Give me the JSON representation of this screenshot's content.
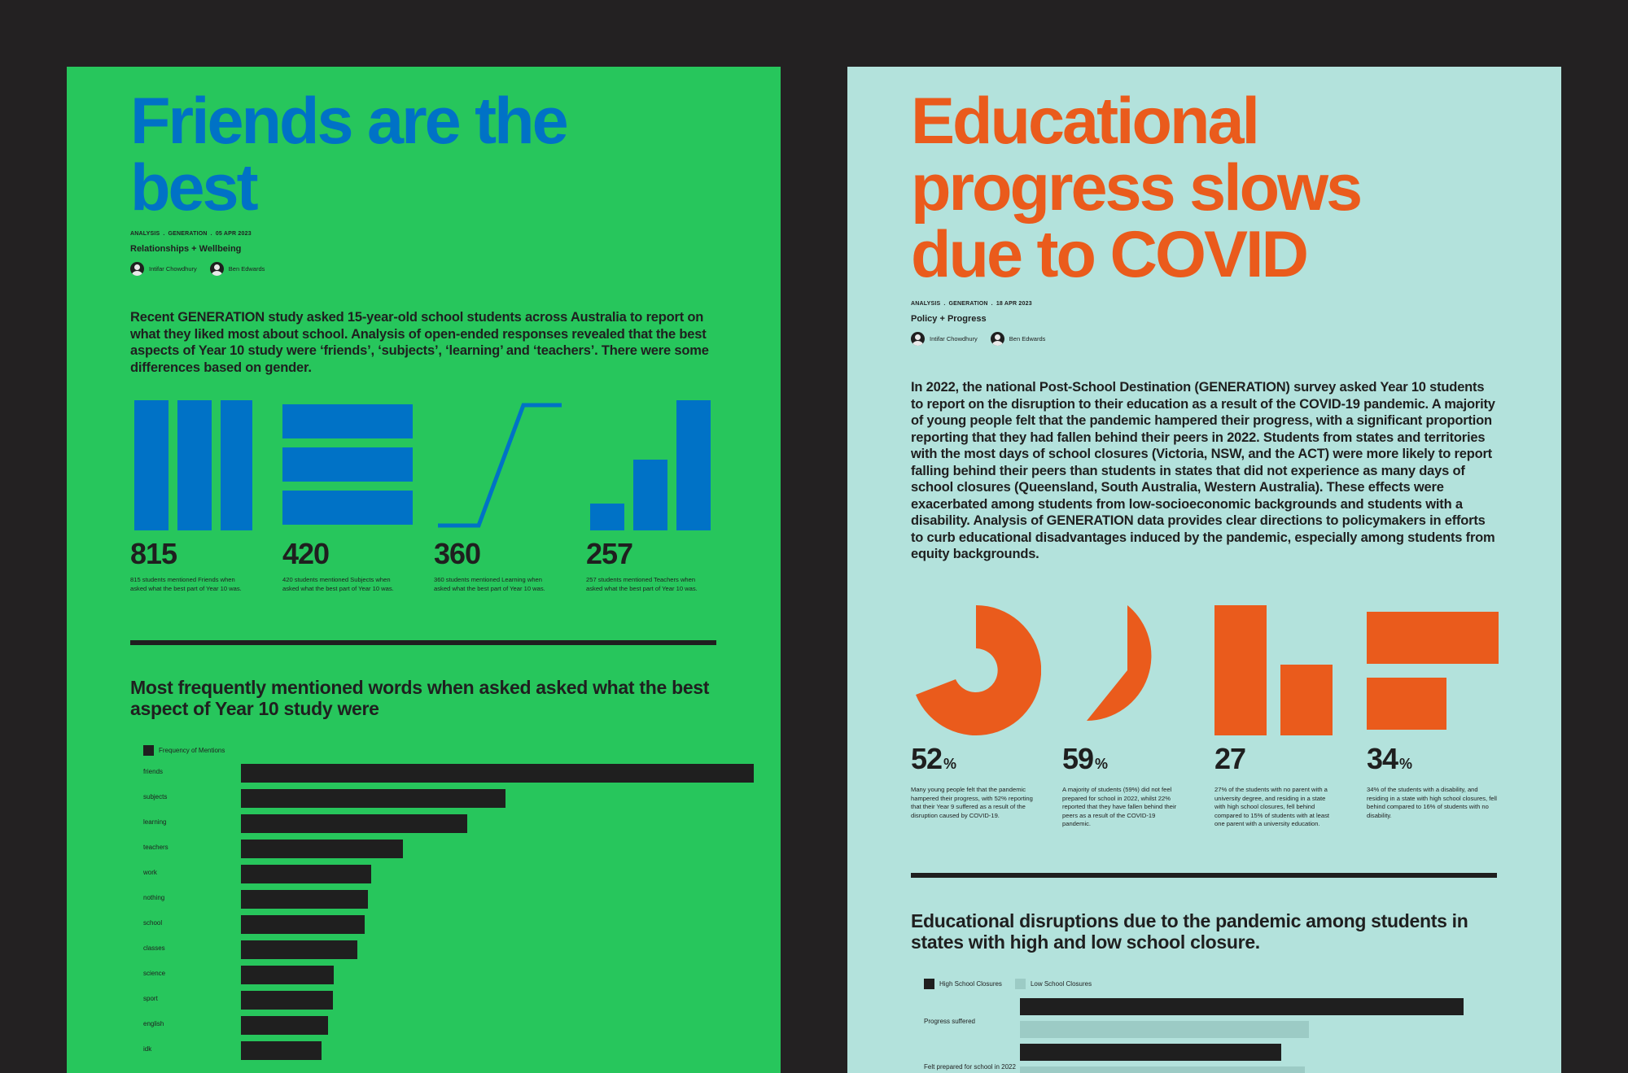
{
  "left_page": {
    "title_lines": [
      "Friends are the",
      "best"
    ],
    "meta": [
      "ANALYSIS",
      "GENERATION",
      "05 APR 2023"
    ],
    "category": "Relationships + Wellbeing",
    "authors": [
      "Intifar Chowdhury",
      "Ben Edwards"
    ],
    "intro": "Recent GENERATION study asked 15-year-old school students across Australia to report on what they liked most about school. Analysis of open-ended responses revealed that the best aspects of Year 10 study were ‘friends’, ‘subjects’, ‘learning’ and ‘teachers’. There were some differences based on gender.",
    "stats": [
      {
        "value": "815",
        "desc": "815 students mentioned Friends when asked what the best part of Year 10 was.",
        "icon": "three-vertical-bars-icon"
      },
      {
        "value": "420",
        "desc": "420 students mentioned Subjects when asked what the best part of Year 10 was.",
        "icon": "three-horizontal-bars-icon"
      },
      {
        "value": "360",
        "desc": "360 students mentioned Learning when asked what the best part of Year 10 was.",
        "icon": "rising-line-icon"
      },
      {
        "value": "257",
        "desc": "257 students mentioned Teachers when asked what the best part of Year 10 was.",
        "icon": "ascending-bars-icon"
      }
    ],
    "section_title": "Most frequently mentioned words when asked asked what the best aspect of Year 10 study were",
    "colors": {
      "background": "#27c65c",
      "title": "#0072c6",
      "bars": "#0072c6",
      "text": "#1f1f1f"
    }
  },
  "right_page": {
    "title_lines": [
      "Educational",
      "progress slows",
      "due to COVID"
    ],
    "meta": [
      "ANALYSIS",
      "GENERATION",
      "18 APR 2023"
    ],
    "category": "Policy + Progress",
    "authors": [
      "Intifar Chowdhury",
      "Ben Edwards"
    ],
    "intro": "In 2022, the national Post-School Destination (GENERATION) survey asked Year 10 students to report on the disruption to their education as a result of the COVID-19 pandemic. A majority of young people felt that the pandemic hampered their progress, with a significant proportion reporting that they had fallen behind their peers in 2022. Students from states and territories with the most days of school closures (Victoria, NSW, and the ACT) were more likely to report falling behind their peers than students in states that did not experience as many days of school closures (Queensland, South Australia, Western Australia). These effects were exacerbated among students from low-socioeconomic backgrounds and students with a disability. Analysis of GENERATION data provides clear directions to policymakers in efforts to curb educational disadvantages induced by the pandemic, especially among students from equity backgrounds.",
    "stats": [
      {
        "value": "52",
        "unit": "%",
        "desc": "Many young people felt that the pandemic hampered their progress, with 52% reporting that their Year 9 suffered as a result of the disruption caused by COVID-19.",
        "icon": "partial-ring-icon"
      },
      {
        "value": "59",
        "unit": "%",
        "desc": "A majority of students (59%) did not feel prepared for school in 2022, whilst 22% reported that they have fallen behind their peers as a result of the COVID-19 pandemic.",
        "icon": "partial-pie-icon"
      },
      {
        "value": "27",
        "unit": "",
        "desc": "27% of the students with no parent with a university degree, and residing in a state with high school closures, fell behind compared to 15% of students with at least one parent with a university education.",
        "icon": "two-bars-icon"
      },
      {
        "value": "34",
        "unit": "%",
        "desc": "34% of the students with a disability, and residing in a state with high school closures, fell behind compared to 16% of students with no disability.",
        "icon": "stacked-blocks-icon"
      }
    ],
    "section_title": "Educational disruptions due to the pandemic among students in states with high and low school closure.",
    "colors": {
      "background": "#b3e2dc",
      "title": "#ea5b1c",
      "shapes": "#ea5b1c",
      "text": "#1f1f1f"
    }
  },
  "chart_data": [
    {
      "type": "bar",
      "orientation": "horizontal",
      "legend": [
        "Frequency of Mentions"
      ],
      "categories": [
        "friends",
        "subjects",
        "learning",
        "teachers",
        "work",
        "nothing",
        "school",
        "classes",
        "science",
        "sport",
        "english",
        "idk"
      ],
      "values": [
        815,
        420,
        360,
        257,
        207,
        202,
        197,
        185,
        148,
        146,
        138,
        128
      ],
      "colors": {
        "bars": "#1f1f1f"
      }
    },
    {
      "type": "bar",
      "orientation": "horizontal",
      "legend": [
        "High School Closures",
        "Low School Closures"
      ],
      "categories": [
        "Progress suffered",
        "Felt prepared for school in 2022"
      ],
      "series": [
        {
          "name": "High School Closures",
          "values": [
            56,
            33
          ]
        },
        {
          "name": "Low School Closures",
          "values": [
            36.5,
            36
          ]
        }
      ],
      "colors": {
        "High School Closures": "#1f1f1f",
        "Low School Closures": "#9ccbc5"
      }
    }
  ]
}
